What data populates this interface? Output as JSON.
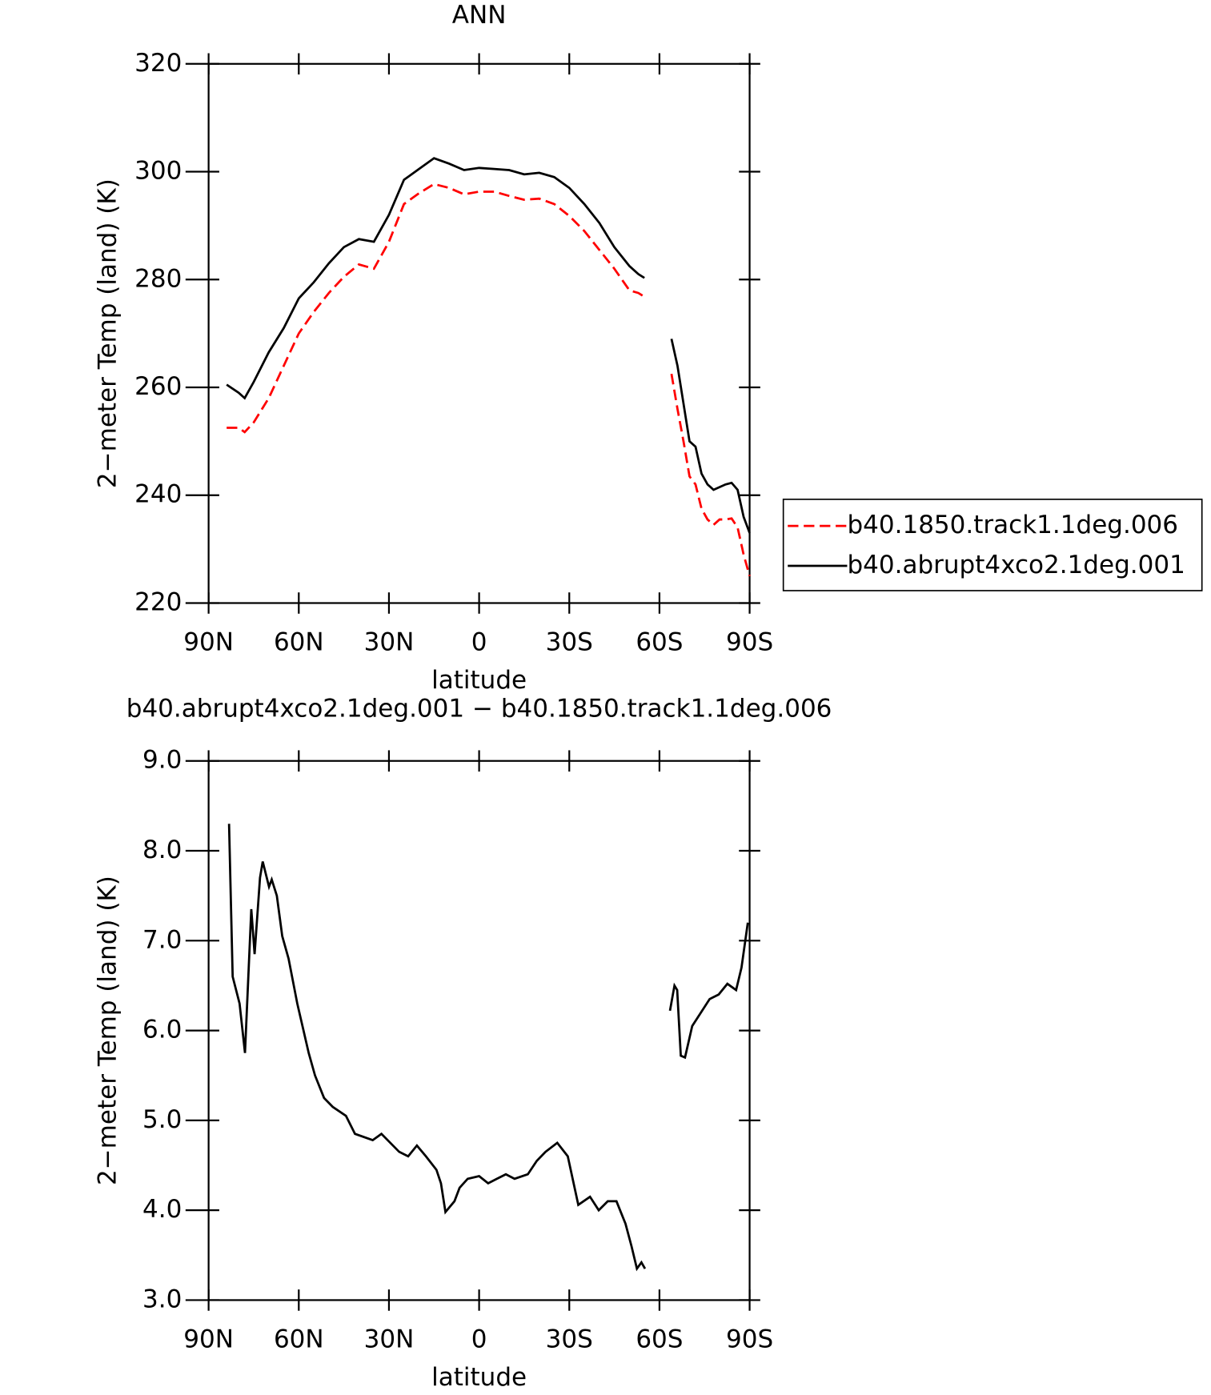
{
  "chart_data": [
    {
      "type": "line",
      "title": "ANN",
      "xlabel": "latitude",
      "ylabel": "2−meter Temp (land) (K)",
      "xlim": [
        90,
        -90
      ],
      "xticks": [
        {
          "value": 90,
          "label": "90N"
        },
        {
          "value": 60,
          "label": "60N"
        },
        {
          "value": 30,
          "label": "30N"
        },
        0,
        {
          "value": -30,
          "label": "30S"
        },
        {
          "value": -60,
          "label": "60S"
        },
        {
          "value": -90,
          "label": "90S"
        }
      ],
      "ylim": [
        220,
        320
      ],
      "yticks": [
        220,
        240,
        260,
        280,
        300,
        320
      ],
      "legend": "outside-right",
      "x": [
        84,
        80,
        78,
        75,
        70,
        65,
        60,
        55,
        50,
        45,
        40,
        35,
        30,
        25,
        20,
        15,
        10,
        5,
        0,
        -5,
        -10,
        -15,
        -20,
        -25,
        -30,
        -35,
        -40,
        -45,
        -50,
        -53,
        -55,
        -60,
        -64,
        -66,
        -68,
        -70,
        -72,
        -74,
        -76,
        -78,
        -80,
        -82,
        -84,
        -86,
        -88,
        -90
      ],
      "series": [
        {
          "name": "b40.1850.track1.1deg.006",
          "color": "#ff0000",
          "style": "dashed",
          "values": [
            252.5,
            252.5,
            251.7,
            253.5,
            258,
            264,
            270,
            274,
            277.5,
            280.5,
            282.8,
            282,
            287,
            294,
            296,
            297.7,
            297,
            295.8,
            296.3,
            296.3,
            295.5,
            294.8,
            295,
            294,
            291.8,
            289,
            285.5,
            282,
            278,
            277.5,
            276.8,
            null,
            262.5,
            256,
            250,
            243.5,
            242,
            237.5,
            235.5,
            234.5,
            235.5,
            235.5,
            235.7,
            234,
            229,
            225
          ]
        },
        {
          "name": "b40.abrupt4xco2.1deg.001",
          "color": "#000000",
          "style": "solid",
          "values": [
            260.5,
            259,
            258,
            261,
            266.5,
            271,
            276.5,
            279.5,
            283,
            286,
            287.5,
            287,
            292,
            298.5,
            300.5,
            302.5,
            301.5,
            300.3,
            300.7,
            300.5,
            300.3,
            299.5,
            299.8,
            299,
            297,
            294,
            290.5,
            286,
            282.5,
            281,
            280.3,
            null,
            269,
            264,
            257,
            250,
            249,
            244,
            242,
            241,
            241.5,
            242,
            242.3,
            241,
            236,
            233
          ]
        }
      ]
    },
    {
      "type": "line",
      "title": "b40.abrupt4xco2.1deg.001 − b40.1850.track1.1deg.006",
      "xlabel": "latitude",
      "ylabel": "2−meter Temp (land) (K)",
      "xlim": [
        90,
        -90
      ],
      "xticks": [
        {
          "value": 90,
          "label": "90N"
        },
        {
          "value": 60,
          "label": "60N"
        },
        {
          "value": 30,
          "label": "30N"
        },
        0,
        {
          "value": -30,
          "label": "30S"
        },
        {
          "value": -60,
          "label": "60S"
        },
        {
          "value": -90,
          "label": "90S"
        }
      ],
      "ylim": [
        3,
        9
      ],
      "yticks": [
        {
          "value": 3,
          "label": "3.0"
        },
        {
          "value": 4,
          "label": "4.0"
        },
        {
          "value": 5,
          "label": "5.0"
        },
        {
          "value": 6,
          "label": "6.0"
        },
        {
          "value": 7,
          "label": "7.0"
        },
        {
          "value": 8,
          "label": "8.0"
        },
        {
          "value": 9,
          "label": "9.0"
        }
      ],
      "x": [
        83.2,
        82,
        79.7,
        77.9,
        75.8,
        74.7,
        72.9,
        72,
        69.9,
        69,
        67.3,
        65.5,
        63.4,
        60.5,
        56.7,
        54.6,
        51.6,
        48.7,
        44.3,
        41.3,
        35.4,
        32.5,
        26.6,
        23.6,
        20.7,
        17.7,
        14.2,
        12.7,
        11.2,
        8.2,
        6.5,
        3.8,
        0,
        -3,
        -5.9,
        -8.9,
        -11.8,
        -16.2,
        -19.2,
        -22.1,
        -26,
        -29.5,
        -33,
        -36.9,
        -39.8,
        -42.8,
        -45.7,
        -48.7,
        -50.7,
        -52.5,
        -54,
        -55.2,
        -60,
        -63.5,
        -65,
        -65.9,
        -67.1,
        -68.5,
        -70.9,
        -73.8,
        -76.7,
        -79.7,
        -82.6,
        -85.5,
        -87.3,
        -89.4
      ],
      "series": [
        {
          "color": "#000000",
          "style": "solid",
          "values": [
            8.3,
            6.6,
            6.3,
            5.75,
            7.35,
            6.85,
            7.7,
            7.88,
            7.6,
            7.68,
            7.5,
            7.05,
            6.8,
            6.3,
            5.75,
            5.5,
            5.25,
            5.15,
            5.05,
            4.85,
            4.78,
            4.85,
            4.65,
            4.6,
            4.72,
            4.6,
            4.45,
            4.3,
            3.98,
            4.1,
            4.25,
            4.35,
            4.38,
            4.3,
            4.35,
            4.4,
            4.35,
            4.4,
            4.55,
            4.65,
            4.75,
            4.6,
            4.06,
            4.15,
            4.0,
            4.1,
            4.1,
            3.85,
            3.6,
            3.35,
            3.42,
            3.35,
            null,
            6.22,
            6.5,
            6.45,
            5.72,
            5.7,
            6.05,
            6.2,
            6.35,
            6.4,
            6.52,
            6.45,
            6.7,
            7.2
          ]
        }
      ]
    }
  ]
}
